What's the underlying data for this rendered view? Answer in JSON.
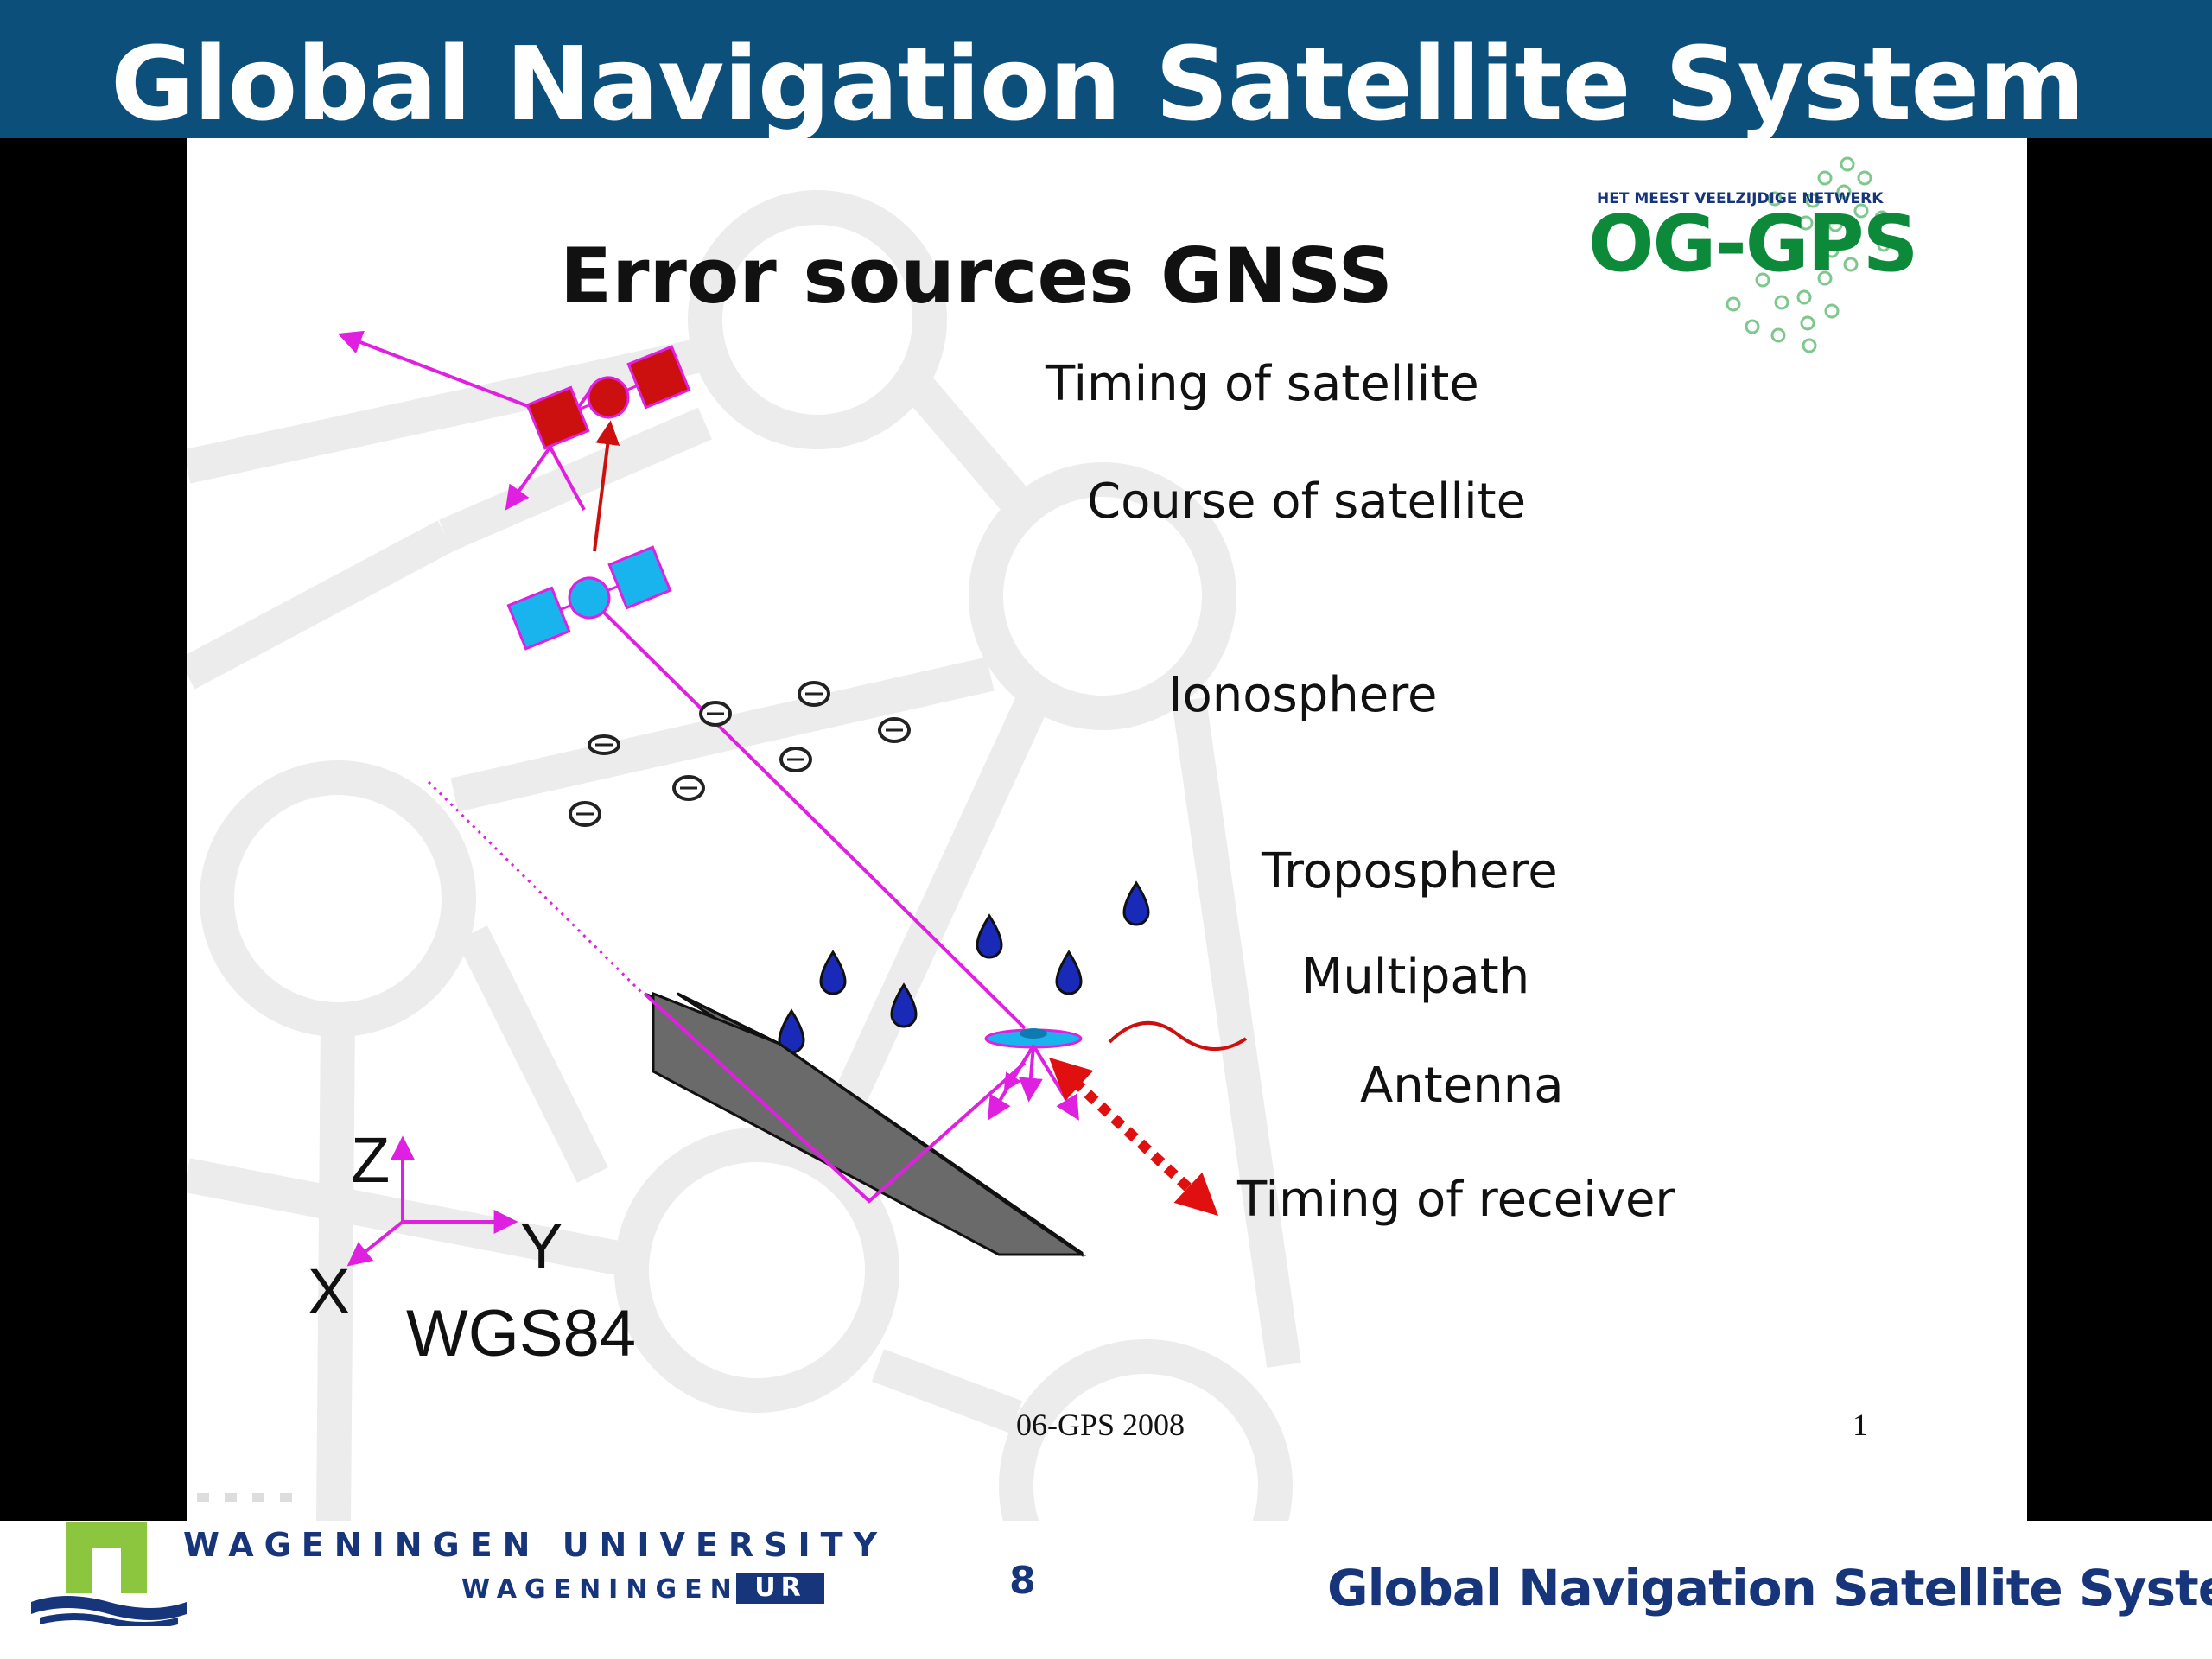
{
  "header": {
    "title": "Global Navigation Satellite System"
  },
  "slide": {
    "title": "Error sources GNSS",
    "logo": {
      "tagline": "HET MEEST VEELZIJDIGE NETWERK",
      "name": "OG-GPS"
    },
    "labels": {
      "timing_satellite": "Timing of satellite",
      "course_satellite": "Course of satellite",
      "ionosphere": "Ionosphere",
      "troposphere": "Troposphere",
      "multipath": "Multipath",
      "antenna": "Antenna",
      "timing_receiver": "Timing of receiver"
    },
    "axes": {
      "z": "Z",
      "y": "Y",
      "x": "X"
    },
    "datum": "WGS84",
    "footer_left": "06-GPS 2008",
    "footer_right": "1"
  },
  "footer": {
    "university": "WAGENINGEN UNIVERSITY",
    "sub": "WAGENINGEN",
    "sub_badge": "UR",
    "page_number": "8",
    "title": "Global Navigation Satellite System"
  },
  "colors": {
    "header_band": "#0d4f7b",
    "magenta": "#e020e0",
    "satellite_old": "#e01010",
    "satellite_new": "#19b4ee",
    "building": "#6a6a6a",
    "logo_green": "#0c8a3a",
    "brand_blue": "#16357a"
  }
}
